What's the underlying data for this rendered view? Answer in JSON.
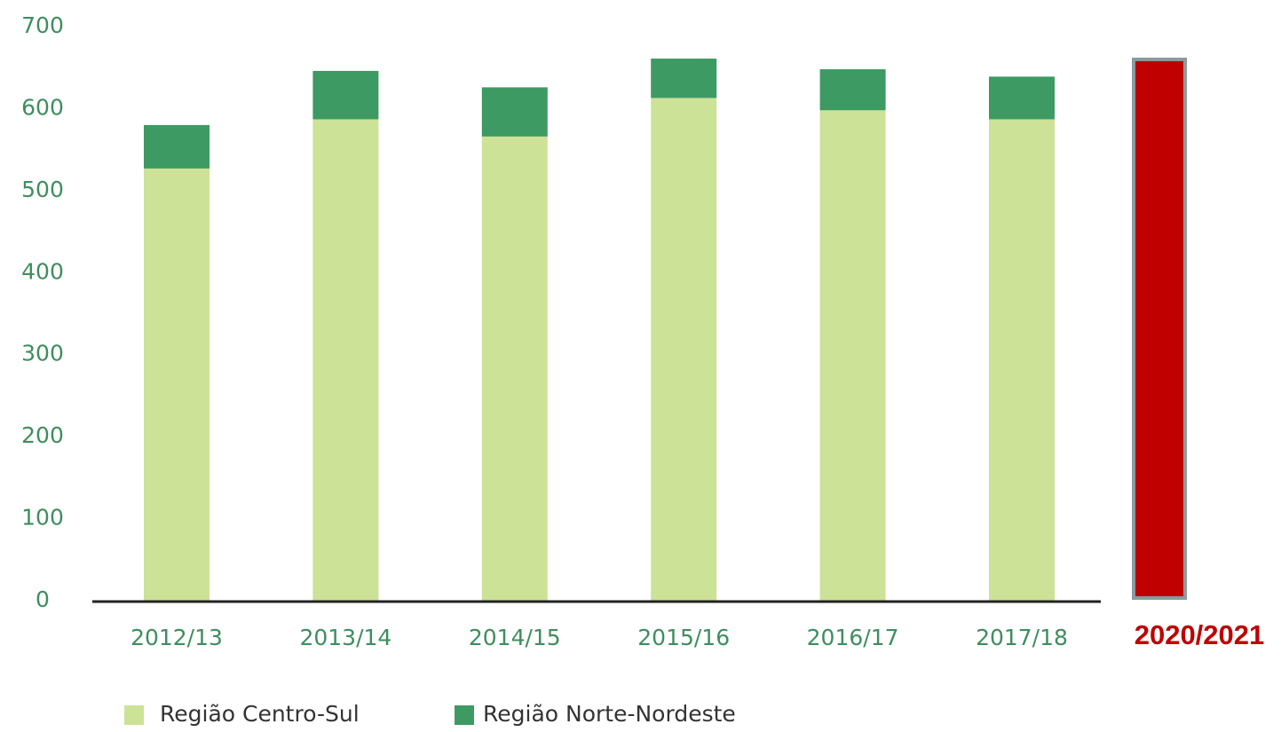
{
  "chart_data": {
    "type": "stacked_bar",
    "categories": [
      "2012/13",
      "2013/14",
      "2014/15",
      "2015/16",
      "2016/17",
      "2017/18"
    ],
    "series": [
      {
        "name": "Região Centro-Sul",
        "color": "#cce297",
        "values": [
          527,
          587,
          566,
          613,
          598,
          587
        ]
      },
      {
        "name": "Região Norte-Nordeste",
        "color": "#3d9a62",
        "values": [
          53,
          59,
          60,
          48,
          50,
          52
        ]
      }
    ],
    "highlight": {
      "category": "2020/2021",
      "value": 660,
      "color": "#c00000",
      "border": "#8a9a9e"
    },
    "ylim": [
      0,
      700
    ],
    "yticks": [
      0,
      100,
      200,
      300,
      400,
      500,
      600,
      700
    ],
    "grid": false
  }
}
